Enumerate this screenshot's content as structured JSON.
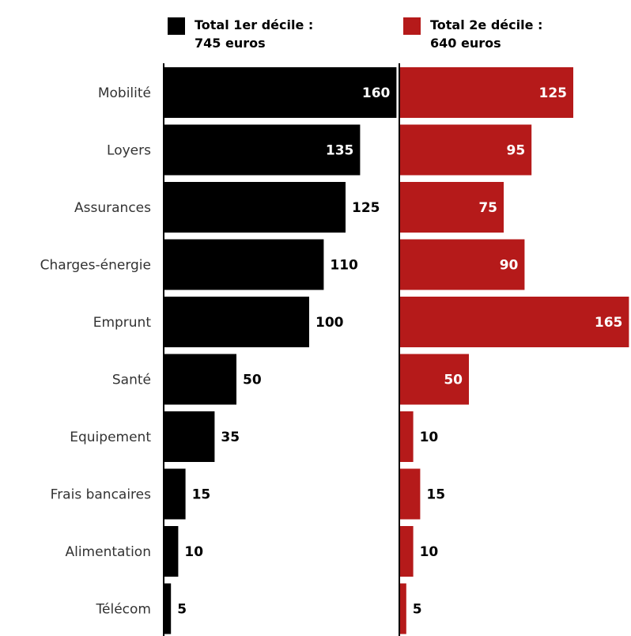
{
  "legend": [
    {
      "line1": "Total 1er décile :",
      "line2": "745 euros",
      "color": "#000000"
    },
    {
      "line1": "Total 2e décile :",
      "line2": "640 euros",
      "color": "#b51a1a"
    }
  ],
  "chart_data": {
    "type": "bar",
    "orientation": "horizontal",
    "title": "",
    "categories": [
      "Mobilité",
      "Loyers",
      "Assurances",
      "Charges-énergie",
      "Emprunt",
      "Santé",
      "Equipement",
      "Frais bancaires",
      "Alimentation",
      "Télécom"
    ],
    "series": [
      {
        "name": "Total 1er décile : 745 euros",
        "color": "#000000",
        "values": [
          160,
          135,
          125,
          110,
          100,
          50,
          35,
          15,
          10,
          5
        ]
      },
      {
        "name": "Total 2e décile : 640 euros",
        "color": "#b51a1a",
        "values": [
          125,
          95,
          75,
          90,
          165,
          50,
          10,
          15,
          10,
          5
        ]
      }
    ],
    "layout": "side-by-side panels",
    "grid": false
  }
}
